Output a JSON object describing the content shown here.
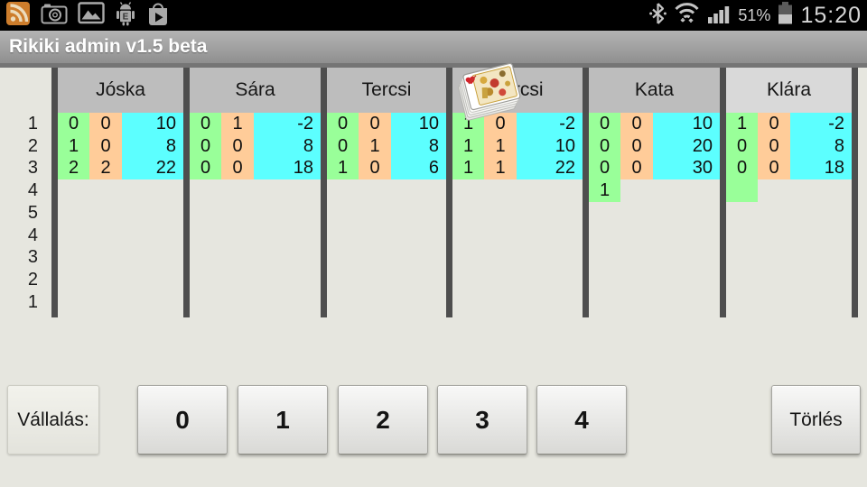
{
  "status_bar": {
    "time": "15:20",
    "battery_percent": "51%",
    "left_icons": [
      "rss-feed-app-icon",
      "camera-icon",
      "gallery-icon",
      "android-email-icon",
      "play-store-icon"
    ],
    "right_icons": [
      "bluetooth-icon",
      "wifi-icon",
      "signal-strength-icon",
      "battery-icon"
    ]
  },
  "title_bar": {
    "title": "Rikiki admin v1.5 beta"
  },
  "scoreboard": {
    "round_labels": [
      "1",
      "2",
      "3",
      "4",
      "5",
      "4",
      "3",
      "2",
      "1"
    ],
    "players": [
      {
        "name": "Jóska",
        "active": false,
        "dealer": false,
        "rows": [
          {
            "bid": "0",
            "tricks": "0",
            "score": "10"
          },
          {
            "bid": "1",
            "tricks": "0",
            "score": "8"
          },
          {
            "bid": "2",
            "tricks": "2",
            "score": "22"
          }
        ]
      },
      {
        "name": "Sára",
        "active": false,
        "dealer": false,
        "rows": [
          {
            "bid": "0",
            "tricks": "1",
            "score": "-2"
          },
          {
            "bid": "0",
            "tricks": "0",
            "score": "8"
          },
          {
            "bid": "0",
            "tricks": "0",
            "score": "18"
          }
        ]
      },
      {
        "name": "Tercsi",
        "active": false,
        "dealer": false,
        "rows": [
          {
            "bid": "0",
            "tricks": "0",
            "score": "10"
          },
          {
            "bid": "0",
            "tricks": "1",
            "score": "8"
          },
          {
            "bid": "1",
            "tricks": "0",
            "score": "6"
          }
        ]
      },
      {
        "name": "Fercsi",
        "active": false,
        "dealer": true,
        "rows": [
          {
            "bid": "1",
            "tricks": "0",
            "score": "-2"
          },
          {
            "bid": "1",
            "tricks": "1",
            "score": "10"
          },
          {
            "bid": "1",
            "tricks": "1",
            "score": "22"
          }
        ]
      },
      {
        "name": "Kata",
        "active": false,
        "dealer": false,
        "rows": [
          {
            "bid": "0",
            "tricks": "0",
            "score": "10"
          },
          {
            "bid": "0",
            "tricks": "0",
            "score": "20"
          },
          {
            "bid": "0",
            "tricks": "0",
            "score": "30"
          },
          {
            "bid": "1"
          }
        ]
      },
      {
        "name": "Klára",
        "active": true,
        "dealer": false,
        "rows": [
          {
            "bid": "1",
            "tricks": "0",
            "score": "-2"
          },
          {
            "bid": "0",
            "tricks": "0",
            "score": "8"
          },
          {
            "bid": "0",
            "tricks": "0",
            "score": "18"
          },
          {
            "bid": ""
          }
        ]
      }
    ]
  },
  "controls": {
    "bid_label": "Vállalás:",
    "number_buttons": [
      "0",
      "1",
      "2",
      "3",
      "4"
    ],
    "clear_button": "Törlés"
  },
  "colors": {
    "background": "#e6e6df",
    "status_bar": "#000000",
    "bid_cell": "#99ff99",
    "tricks_cell": "#ffcc99",
    "score_cell": "#5cffff",
    "header_cell": "#bdbdbd",
    "header_cell_active": "#d9d9d9",
    "separator": "#4e4e4e"
  }
}
